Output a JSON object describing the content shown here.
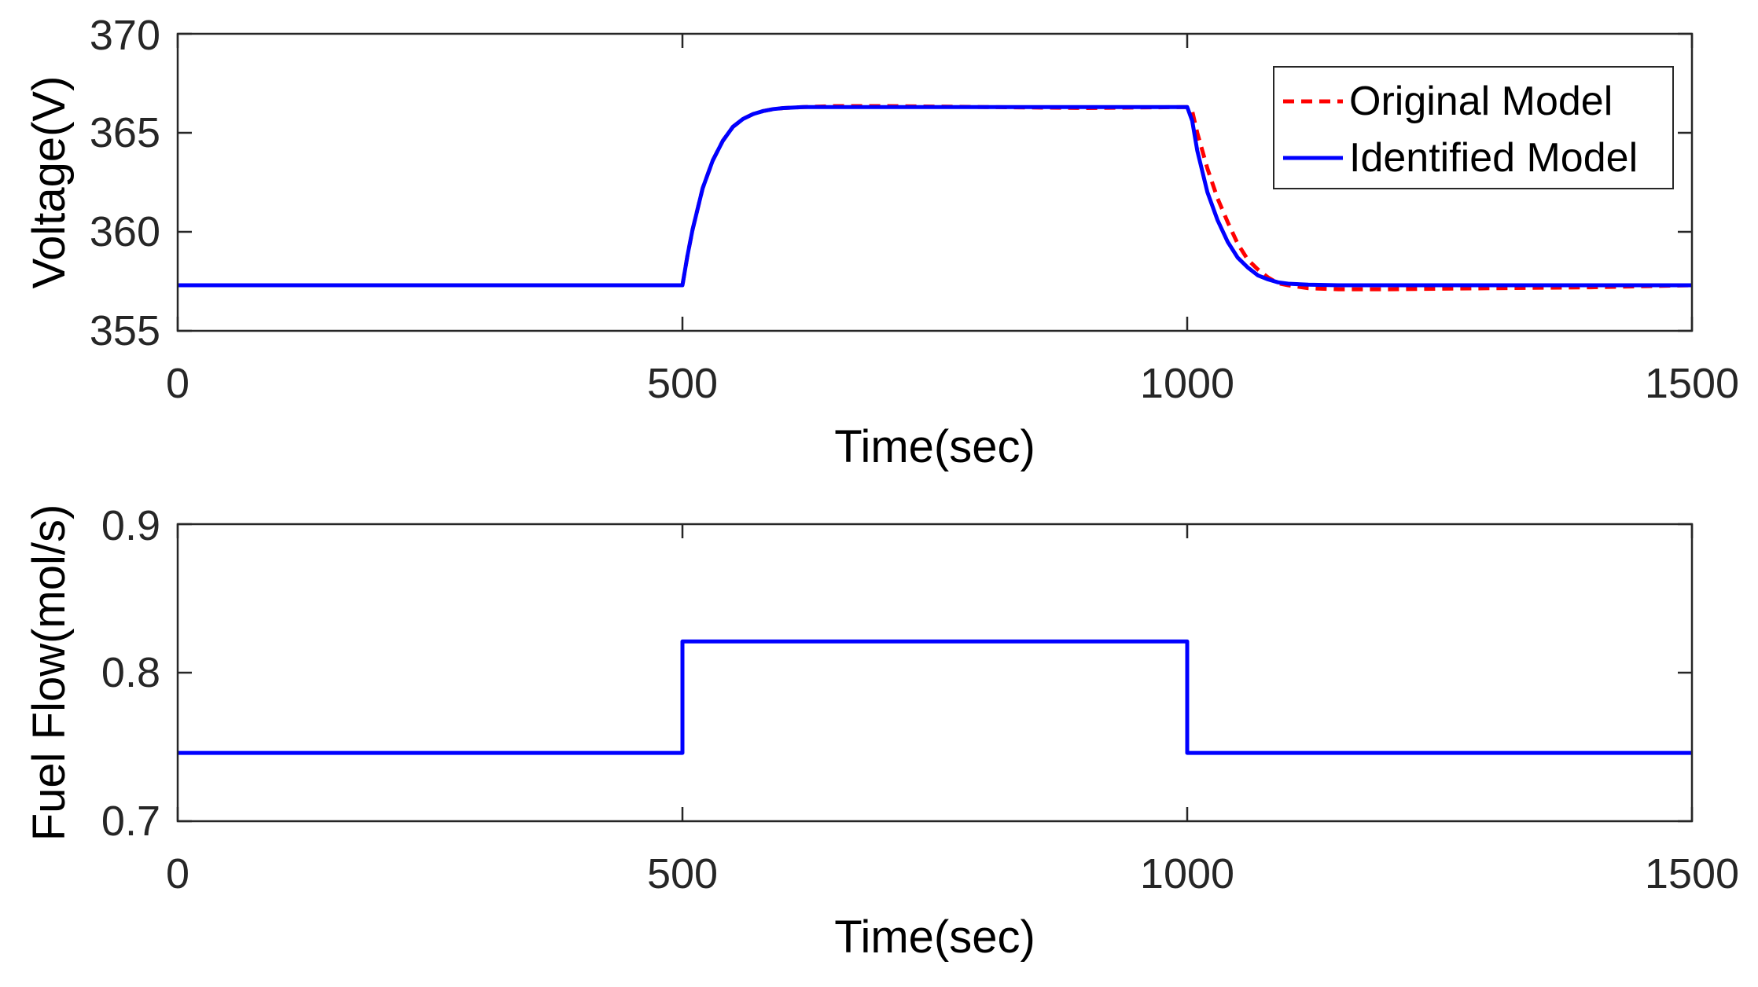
{
  "chart_data": [
    {
      "type": "line",
      "xlabel": "Time(sec)",
      "ylabel": "Voltage(V)",
      "xlim": [
        0,
        1500
      ],
      "ylim": [
        355,
        370
      ],
      "xticks": [
        "0",
        "500",
        "1000",
        "1500"
      ],
      "yticks": [
        "355",
        "360",
        "365",
        "370"
      ],
      "grid": false,
      "legend": "top-right",
      "series": [
        {
          "name": "Original Model",
          "color": "#ff0000",
          "style": "dashed",
          "x": [
            0,
            500,
            505,
            510,
            520,
            530,
            540,
            550,
            560,
            570,
            580,
            590,
            600,
            620,
            650,
            700,
            800,
            900,
            1000,
            1005,
            1010,
            1020,
            1030,
            1040,
            1050,
            1060,
            1070,
            1080,
            1090,
            1100,
            1120,
            1150,
            1200,
            1300,
            1400,
            1500
          ],
          "y": [
            357.3,
            357.3,
            358.8,
            360.1,
            362.2,
            363.6,
            364.6,
            365.3,
            365.7,
            365.95,
            366.1,
            366.2,
            366.25,
            366.3,
            366.35,
            366.35,
            366.3,
            366.25,
            366.3,
            366.1,
            365.0,
            363.2,
            361.7,
            360.5,
            359.4,
            358.6,
            358.1,
            357.7,
            357.4,
            357.3,
            357.15,
            357.1,
            357.1,
            357.15,
            357.2,
            357.3
          ]
        },
        {
          "name": "Identified Model",
          "color": "#0000ff",
          "style": "solid",
          "x": [
            0,
            500,
            505,
            510,
            520,
            530,
            540,
            550,
            560,
            570,
            580,
            590,
            600,
            620,
            650,
            700,
            800,
            900,
            1000,
            1005,
            1010,
            1020,
            1030,
            1040,
            1050,
            1060,
            1070,
            1080,
            1090,
            1100,
            1120,
            1150,
            1200,
            1300,
            1400,
            1500
          ],
          "y": [
            357.3,
            357.3,
            358.8,
            360.1,
            362.2,
            363.6,
            364.6,
            365.3,
            365.7,
            365.95,
            366.1,
            366.2,
            366.25,
            366.3,
            366.3,
            366.3,
            366.3,
            366.3,
            366.3,
            365.6,
            364.1,
            362.0,
            360.6,
            359.5,
            358.7,
            358.2,
            357.8,
            357.6,
            357.45,
            357.38,
            357.33,
            357.3,
            357.3,
            357.3,
            357.3,
            357.3
          ]
        }
      ]
    },
    {
      "type": "line",
      "xlabel": "Time(sec)",
      "ylabel": "Fuel Flow(mol/s)",
      "xlim": [
        0,
        1500
      ],
      "ylim": [
        0.7,
        0.9
      ],
      "xticks": [
        "0",
        "500",
        "1000",
        "1500"
      ],
      "yticks": [
        "0.7",
        "0.8",
        "0.9"
      ],
      "grid": false,
      "series": [
        {
          "color": "#0000ff",
          "style": "solid",
          "x": [
            0,
            500,
            500,
            1000,
            1000,
            1500
          ],
          "y": [
            0.746,
            0.746,
            0.821,
            0.821,
            0.746,
            0.746
          ]
        }
      ]
    }
  ]
}
